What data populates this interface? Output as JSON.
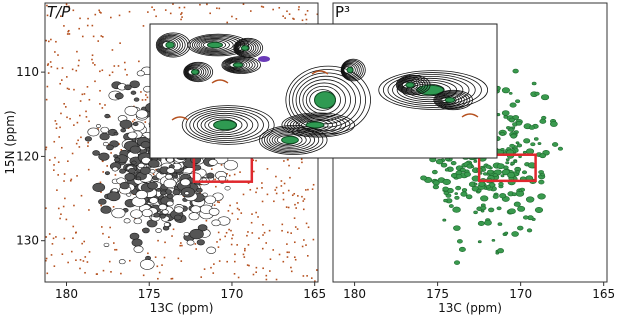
{
  "chart_data": [
    {
      "type": "spectrum",
      "title": "T/P",
      "xlabel": "13C (ppm)",
      "ylabel": "15N (ppm)",
      "xlim": [
        181.3,
        164.8
      ],
      "xticks": [
        180,
        175,
        170,
        165
      ],
      "ylim": [
        134.9,
        101.8
      ],
      "yticks": [
        110,
        120,
        130
      ],
      "peak_color": "#222222",
      "noise_color": "#b5501e",
      "highlight_box": {
        "x": [
          172.3,
          168.8
        ],
        "y": [
          120,
          123
        ],
        "color": "#e0282e"
      }
    },
    {
      "type": "spectrum",
      "title": "P³",
      "xlabel": "13C (ppm)",
      "xlim": [
        181.3,
        164.8
      ],
      "xticks": [
        180,
        175,
        170,
        165
      ],
      "ylim": [
        134.9,
        101.8
      ],
      "peak_color": "#3a9a4e",
      "highlight_box": {
        "x": [
          172.5,
          169.1
        ],
        "y": [
          119.8,
          122.9
        ],
        "color": "#e0282e"
      }
    }
  ]
}
